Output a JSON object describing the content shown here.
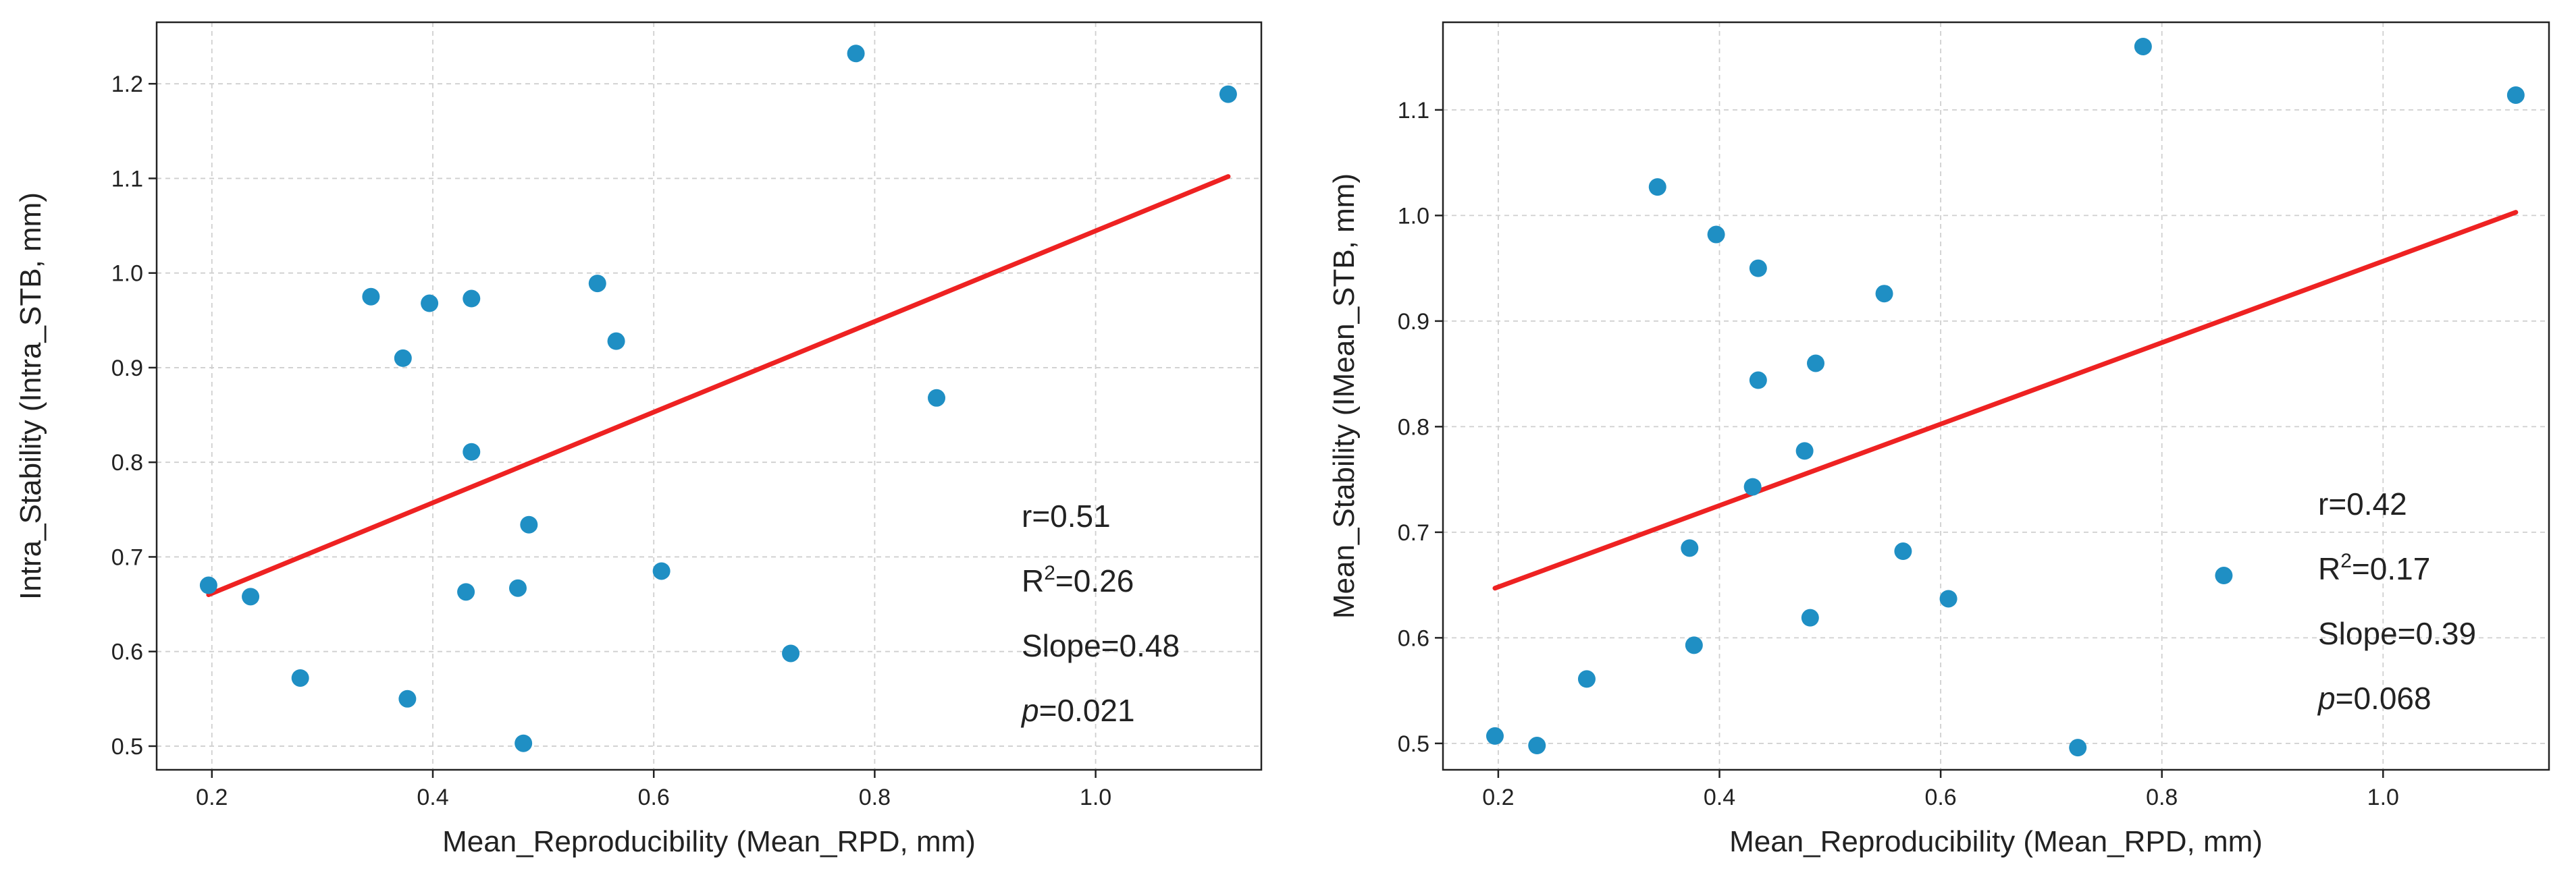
{
  "colors": {
    "point": "#1f8fc4",
    "fit": "#ee2222",
    "grid": "#cfcfcf",
    "frame": "#222222"
  },
  "chart_data": [
    {
      "type": "scatter",
      "xlabel": "Mean_Reproducibility (Mean_RPD, mm)",
      "ylabel": "Intra_Stability (Intra_STB, mm)",
      "xlim": [
        0.15,
        1.15
      ],
      "ylim": [
        0.475,
        1.265
      ],
      "xticks": [
        "0.2",
        "0.4",
        "0.6",
        "0.8",
        "1.0"
      ],
      "yticks": [
        "0.5",
        "0.6",
        "0.7",
        "0.8",
        "0.9",
        "1.0",
        "1.1",
        "1.2"
      ],
      "grid": true,
      "points": [
        [
          0.197,
          0.67
        ],
        [
          0.235,
          0.658
        ],
        [
          0.28,
          0.572
        ],
        [
          0.344,
          0.975
        ],
        [
          0.373,
          0.91
        ],
        [
          0.377,
          0.55
        ],
        [
          0.397,
          0.968
        ],
        [
          0.43,
          0.663
        ],
        [
          0.435,
          0.973
        ],
        [
          0.435,
          0.811
        ],
        [
          0.477,
          0.667
        ],
        [
          0.482,
          0.503
        ],
        [
          0.487,
          0.734
        ],
        [
          0.549,
          0.989
        ],
        [
          0.566,
          0.928
        ],
        [
          0.607,
          0.685
        ],
        [
          0.724,
          0.598
        ],
        [
          0.783,
          1.232
        ],
        [
          0.856,
          0.868
        ],
        [
          1.12,
          1.189
        ]
      ],
      "fit": {
        "x1": 0.197,
        "y1": 0.66,
        "x2": 1.12,
        "y2": 1.102
      },
      "stats": {
        "r": "r=0.51",
        "r2_prefix": "R",
        "r2_sup": "2",
        "r2_value": "=0.26",
        "slope": "Slope=0.48",
        "p_symbol": "p",
        "p_value": "=0.021"
      }
    },
    {
      "type": "scatter",
      "xlabel": "Mean_Reproducibility (Mean_RPD, mm)",
      "ylabel": "Mean_Stability (IMean_STB, mm)",
      "xlim": [
        0.15,
        1.15
      ],
      "ylim": [
        0.475,
        1.183
      ],
      "xticks": [
        "0.2",
        "0.4",
        "0.6",
        "0.8",
        "1.0"
      ],
      "yticks": [
        "0.5",
        "0.6",
        "0.7",
        "0.8",
        "0.9",
        "1.0",
        "1.1"
      ],
      "grid": true,
      "points": [
        [
          0.197,
          0.507
        ],
        [
          0.235,
          0.498
        ],
        [
          0.28,
          0.561
        ],
        [
          0.344,
          1.027
        ],
        [
          0.373,
          0.685
        ],
        [
          0.377,
          0.593
        ],
        [
          0.397,
          0.982
        ],
        [
          0.43,
          0.743
        ],
        [
          0.435,
          0.95
        ],
        [
          0.435,
          0.844
        ],
        [
          0.477,
          0.777
        ],
        [
          0.482,
          0.619
        ],
        [
          0.487,
          0.86
        ],
        [
          0.549,
          0.926
        ],
        [
          0.566,
          0.682
        ],
        [
          0.607,
          0.637
        ],
        [
          0.724,
          0.496
        ],
        [
          0.783,
          1.16
        ],
        [
          0.856,
          0.659
        ],
        [
          1.12,
          1.114
        ]
      ],
      "fit": {
        "x1": 0.197,
        "y1": 0.647,
        "x2": 1.12,
        "y2": 1.003
      },
      "stats": {
        "r": "r=0.42",
        "r2_prefix": "R",
        "r2_sup": "2",
        "r2_value": "=0.17",
        "slope": "Slope=0.39",
        "p_symbol": "p",
        "p_value": "=0.068"
      }
    }
  ]
}
